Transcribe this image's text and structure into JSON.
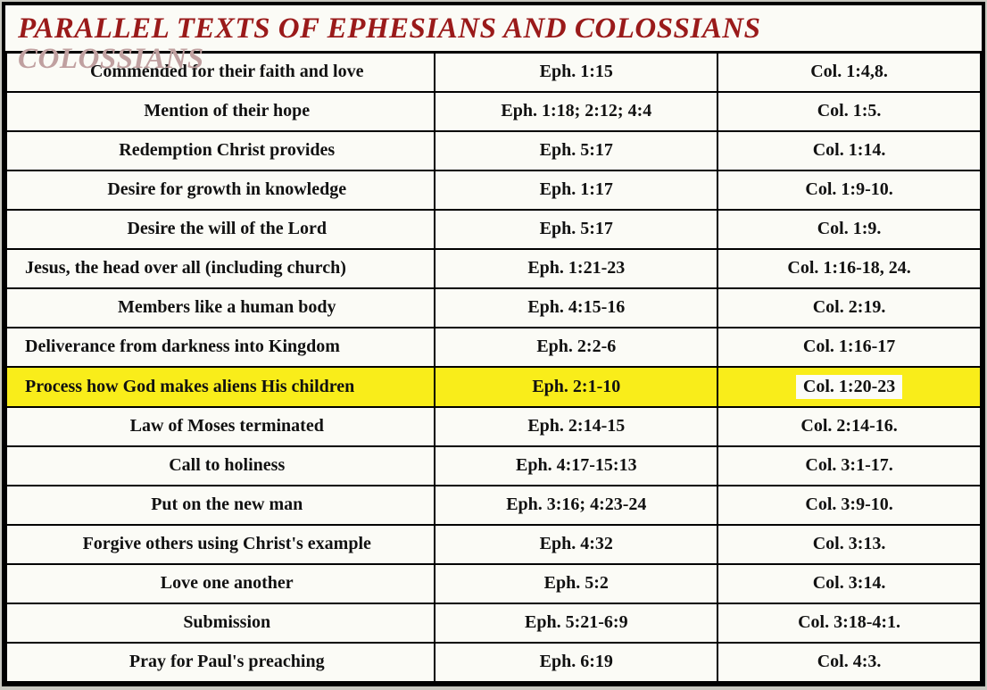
{
  "title": "PARALLEL TEXTS OF EPHESIANS AND COLOSSIANS",
  "title_shadow": "COLOSSIANS",
  "title_color": "#9a1a1a",
  "highlight_color": "#f9ed1a",
  "background_color": "#fbfbf6",
  "border_color": "#000000",
  "font_family": "Georgia, serif",
  "rows": [
    {
      "topic": "Commended for their faith and love",
      "eph": "Eph. 1:15",
      "col": "Col. 1:4,8.",
      "highlight": false,
      "topic_align": "center"
    },
    {
      "topic": "Mention of their hope",
      "eph": "Eph. 1:18; 2:12; 4:4",
      "col": "Col. 1:5.",
      "highlight": false,
      "topic_align": "center"
    },
    {
      "topic": "Redemption Christ provides",
      "eph": "Eph. 5:17",
      "col": "Col. 1:14.",
      "highlight": false,
      "topic_align": "center"
    },
    {
      "topic": "Desire for growth in knowledge",
      "eph": "Eph. 1:17",
      "col": "Col. 1:9-10.",
      "highlight": false,
      "topic_align": "center"
    },
    {
      "topic": "Desire the will of the Lord",
      "eph": "Eph. 5:17",
      "col": "Col. 1:9.",
      "highlight": false,
      "topic_align": "center"
    },
    {
      "topic": "Jesus, the head over all (including church)",
      "eph": "Eph. 1:21-23",
      "col": "Col. 1:16-18, 24.",
      "highlight": false,
      "topic_align": "left"
    },
    {
      "topic": "Members like a human body",
      "eph": "Eph. 4:15-16",
      "col": "Col. 2:19.",
      "highlight": false,
      "topic_align": "center"
    },
    {
      "topic": "Deliverance from darkness into Kingdom",
      "eph": "Eph. 2:2-6",
      "col": "Col. 1:16-17",
      "highlight": false,
      "topic_align": "left"
    },
    {
      "topic": "Process how God makes aliens His children",
      "eph": "Eph. 2:1-10",
      "col": "Col. 1:20-23",
      "highlight": true,
      "topic_align": "left"
    },
    {
      "topic": "Law of Moses terminated",
      "eph": "Eph. 2:14-15",
      "col": "Col. 2:14-16.",
      "highlight": false,
      "topic_align": "center"
    },
    {
      "topic": "Call to holiness",
      "eph": "Eph. 4:17-15:13",
      "col": "Col. 3:1-17.",
      "highlight": false,
      "topic_align": "center"
    },
    {
      "topic": "Put on the new man",
      "eph": "Eph. 3:16; 4:23-24",
      "col": "Col. 3:9-10.",
      "highlight": false,
      "topic_align": "center"
    },
    {
      "topic": "Forgive others using Christ's example",
      "eph": "Eph. 4:32",
      "col": "Col. 3:13.",
      "highlight": false,
      "topic_align": "center"
    },
    {
      "topic": "Love one another",
      "eph": "Eph. 5:2",
      "col": "Col. 3:14.",
      "highlight": false,
      "topic_align": "center"
    },
    {
      "topic": "Submission",
      "eph": "Eph. 5:21-6:9",
      "col": "Col. 3:18-4:1.",
      "highlight": false,
      "topic_align": "center"
    },
    {
      "topic": "Pray for Paul's preaching",
      "eph": "Eph. 6:19",
      "col": "Col. 4:3.",
      "highlight": false,
      "topic_align": "center"
    }
  ]
}
